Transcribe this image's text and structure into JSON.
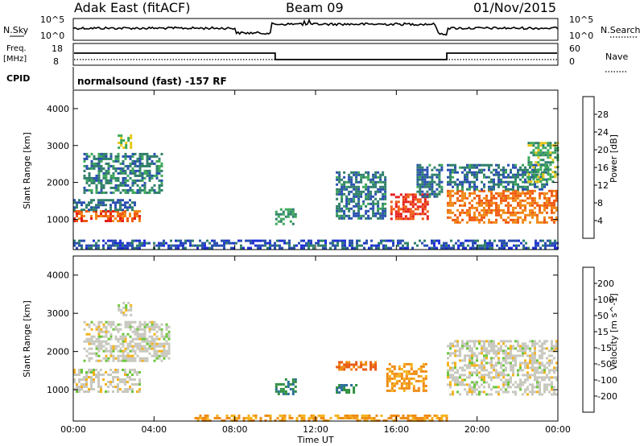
{
  "header": {
    "station": "Adak East (fitACF)",
    "beam": "Beam 09",
    "date": "01/Nov/2015"
  },
  "sky_panel": {
    "left_label": "N.Sky",
    "right_label": "N.Search",
    "left_ticks": [
      "10^5",
      "10^0"
    ],
    "right_ticks": [
      "10^5",
      "10^0"
    ]
  },
  "freq_panel": {
    "left_label_1": "Freq.",
    "left_label_2": "[MHz]",
    "right_label": "Nave",
    "left_ticks": [
      "18",
      "8"
    ],
    "right_ticks": [
      "60",
      "0"
    ]
  },
  "cpid": {
    "label": "CPID",
    "program": "normalsound (fast) -157 RF"
  },
  "x_axis": {
    "label": "Time UT",
    "ticks": [
      "00:00",
      "04:00",
      "08:00",
      "12:00",
      "16:00",
      "20:00",
      "00:00"
    ]
  },
  "colors": {
    "power": [
      "#1f2fd6",
      "#2a4fb0",
      "#2f7f6a",
      "#3da85a",
      "#e8c817",
      "#f08a18",
      "#f05a12",
      "#e51d1d"
    ],
    "velocity": [
      "#1a2fb5",
      "#2a6e9a",
      "#2f8f3f",
      "#6cc63a",
      "#c8c8bf",
      "#f5b21a",
      "#ef8a12",
      "#e85a12",
      "#e51d1d"
    ]
  },
  "chart_data": [
    {
      "type": "heatmap",
      "title": "",
      "parameter": "Power",
      "xlabel": "Time UT",
      "ylabel": "Slant Range [km]",
      "xlim": [
        "00:00",
        "24:00"
      ],
      "ylim": [
        180,
        4500
      ],
      "y_ticks": [
        1000,
        2000,
        3000,
        4000
      ],
      "colorbar": {
        "label": "Power [dB]",
        "ticks": [
          4,
          8,
          12,
          16,
          20,
          24,
          28
        ],
        "range": [
          0,
          32
        ]
      },
      "features": [
        {
          "t_start": 0.0,
          "t_end": 3.3,
          "range_start": 950,
          "range_end": 1250,
          "value": 26
        },
        {
          "t_start": 0.0,
          "t_end": 3.0,
          "range_start": 1250,
          "range_end": 1550,
          "value": 8
        },
        {
          "t_start": 0.5,
          "t_end": 4.4,
          "range_start": 1750,
          "range_end": 2800,
          "value": 10
        },
        {
          "t_start": 2.2,
          "t_end": 2.9,
          "range_start": 2950,
          "range_end": 3300,
          "value": 16
        },
        {
          "t_start": 10.0,
          "t_end": 11.0,
          "range_start": 900,
          "range_end": 1300,
          "value": 12
        },
        {
          "t_start": 13.0,
          "t_end": 15.5,
          "range_start": 1000,
          "range_end": 2300,
          "value": 9
        },
        {
          "t_start": 15.7,
          "t_end": 17.5,
          "range_start": 1000,
          "range_end": 1700,
          "value": 28
        },
        {
          "t_start": 17.0,
          "t_end": 18.3,
          "range_start": 1600,
          "range_end": 2500,
          "value": 9
        },
        {
          "t_start": 18.5,
          "t_end": 24.0,
          "range_start": 900,
          "range_end": 1800,
          "value": 24
        },
        {
          "t_start": 18.5,
          "t_end": 23.5,
          "range_start": 1800,
          "range_end": 2500,
          "value": 9
        },
        {
          "t_start": 22.5,
          "t_end": 24.0,
          "range_start": 2000,
          "range_end": 3100,
          "value": 14
        },
        {
          "t_start": 0.0,
          "t_end": 24.0,
          "range_start": 200,
          "range_end": 450,
          "value": 6
        }
      ]
    },
    {
      "type": "heatmap",
      "title": "",
      "parameter": "Velocity",
      "xlabel": "Time UT",
      "ylabel": "Slant Range [km]",
      "xlim": [
        "00:00",
        "24:00"
      ],
      "ylim": [
        180,
        4500
      ],
      "y_ticks": [
        1000,
        2000,
        3000,
        4000
      ],
      "colorbar": {
        "label": "Velocity [m s^-1]",
        "ticks": [
          200,
          100,
          50,
          15,
          -15,
          -50,
          -100,
          -200
        ],
        "range": [
          -250,
          250
        ]
      },
      "features": [
        {
          "t_start": 0.0,
          "t_end": 3.3,
          "range_start": 950,
          "range_end": 1550,
          "value": 0
        },
        {
          "t_start": 0.5,
          "t_end": 4.8,
          "range_start": 1750,
          "range_end": 2800,
          "value": 0
        },
        {
          "t_start": 2.2,
          "t_end": 2.9,
          "range_start": 2950,
          "range_end": 3300,
          "value": 0
        },
        {
          "t_start": 10.0,
          "t_end": 11.0,
          "range_start": 900,
          "range_end": 1300,
          "value": 70
        },
        {
          "t_start": 13.0,
          "t_end": 14.0,
          "range_start": 950,
          "range_end": 1150,
          "value": 70
        },
        {
          "t_start": 13.0,
          "t_end": 15.0,
          "range_start": 1500,
          "range_end": 1750,
          "value": -80
        },
        {
          "t_start": 15.5,
          "t_end": 17.5,
          "range_start": 1000,
          "range_end": 1700,
          "value": -40
        },
        {
          "t_start": 18.5,
          "t_end": 24.0,
          "range_start": 900,
          "range_end": 2300,
          "value": 0
        },
        {
          "t_start": 6.0,
          "t_end": 18.5,
          "range_start": 200,
          "range_end": 350,
          "value": -35
        }
      ]
    }
  ]
}
